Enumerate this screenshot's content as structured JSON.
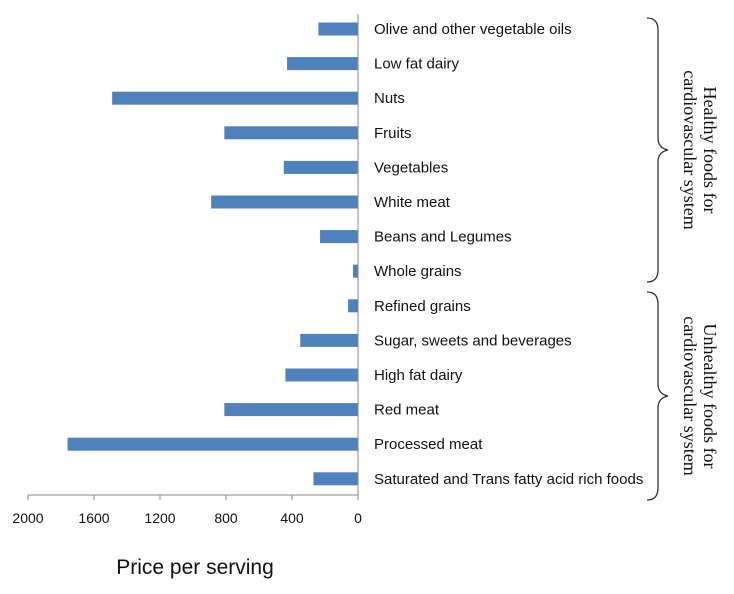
{
  "chart_data": {
    "type": "bar",
    "orientation": "horizontal",
    "x_direction": "reversed",
    "categories": [
      "Olive and other vegetable oils",
      "Low fat dairy",
      "Nuts",
      "Fruits",
      "Vegetables",
      "White meat",
      "Beans and Legumes",
      "Whole grains",
      "Refined grains",
      "Sugar, sweets and beverages",
      "High fat dairy",
      "Red meat",
      "Processed meat",
      "Saturated and Trans fatty acid rich foods"
    ],
    "values": [
      240,
      430,
      1490,
      810,
      450,
      890,
      230,
      30,
      60,
      350,
      440,
      810,
      1760,
      270
    ],
    "bar_color": "#4f81bd",
    "xlabel": "Price per serving",
    "xlim": [
      0,
      2000
    ],
    "xticks": [
      "2000",
      "1600",
      "1200",
      "800",
      "400",
      "0"
    ],
    "groups": [
      {
        "label_lines": [
          "Healthy foods for",
          "cardiovascular system"
        ],
        "categories_range": [
          0,
          7
        ]
      },
      {
        "label_lines": [
          "Unhealthy foods for",
          "cardiovascular system"
        ],
        "categories_range": [
          8,
          13
        ]
      }
    ]
  }
}
